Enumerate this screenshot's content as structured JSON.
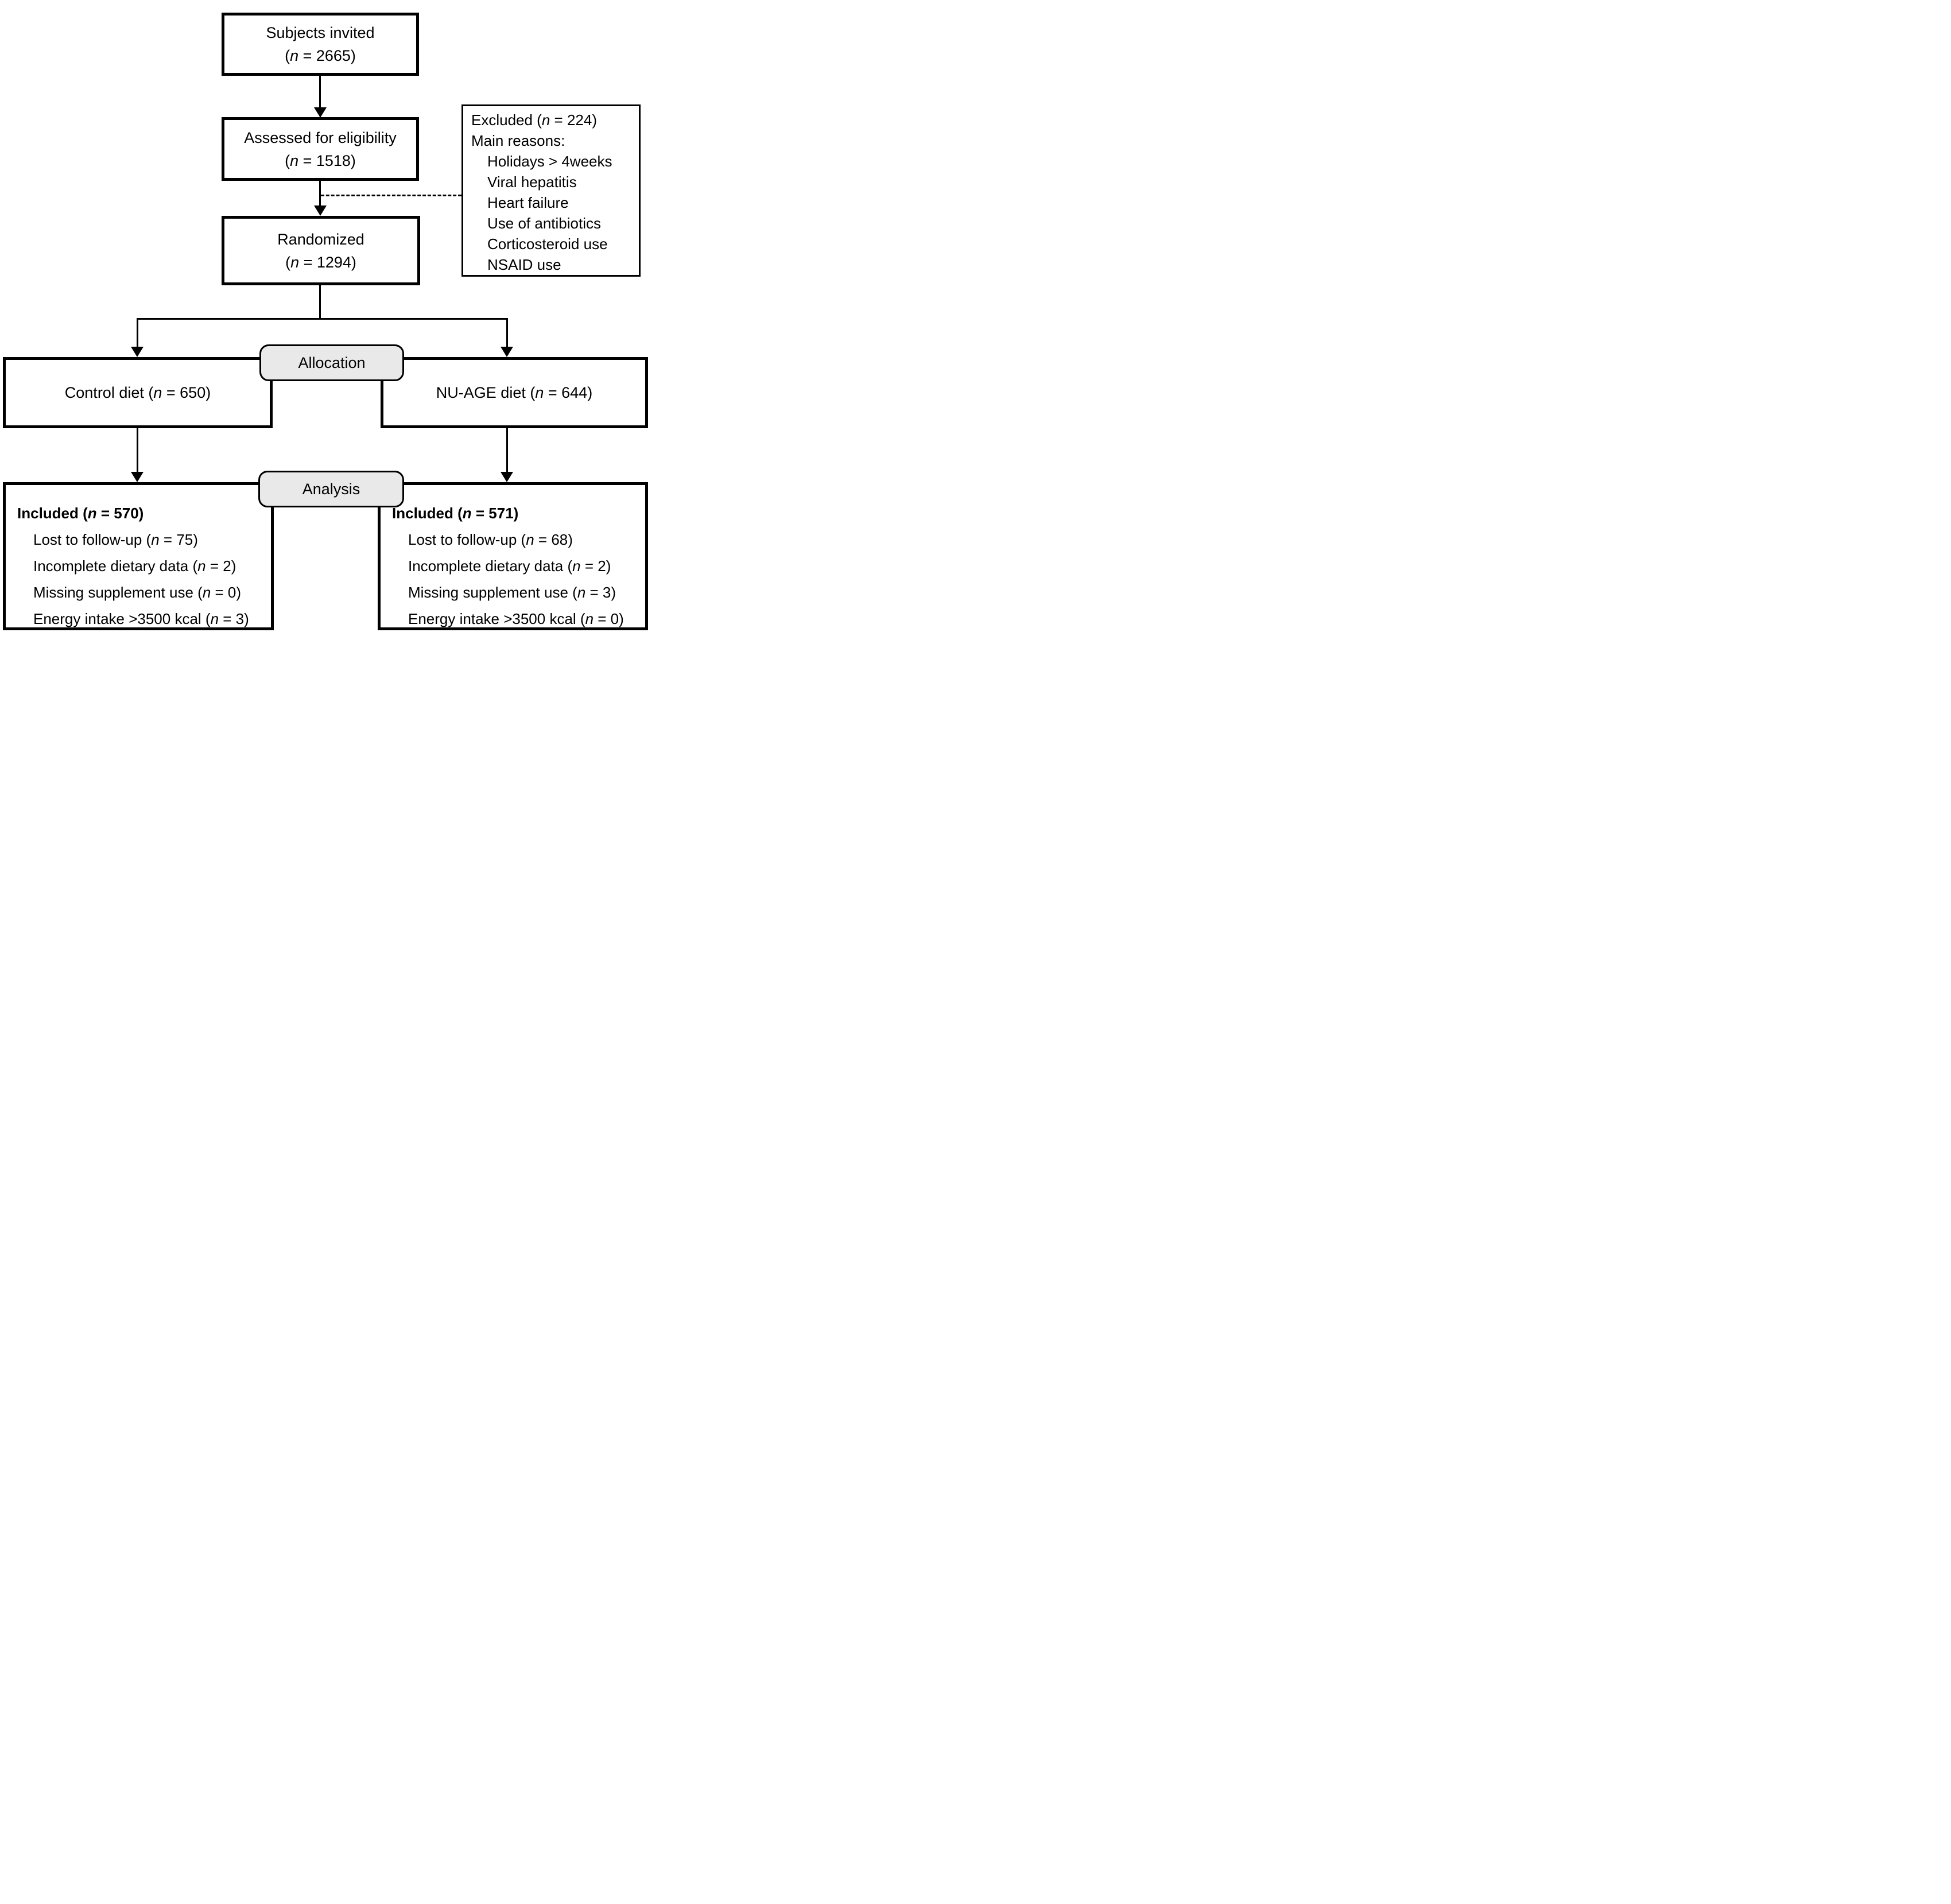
{
  "diagram": {
    "boxes": {
      "subjects_invited": {
        "title": "Subjects invited",
        "count": "(n = 2665)"
      },
      "assessed": {
        "title": "Assessed for eligibility",
        "count": "(n = 1518)"
      },
      "excluded": {
        "title": "Excluded (n = 224)",
        "subtitle": "Main reasons:",
        "reasons": [
          "Holidays > 4weeks",
          "Viral hepatitis",
          "Heart failure",
          "Use of antibiotics",
          "Corticosteroid use",
          "NSAID use"
        ]
      },
      "randomized": {
        "title": "Randomized",
        "count": "(n = 1294)"
      },
      "control_diet": {
        "label": "Control diet (n = 650)"
      },
      "nuage_diet": {
        "label": "NU-AGE diet (n = 644)"
      },
      "analysis_control": {
        "included": "Included (n = 570)",
        "items": [
          "Lost to follow-up (n = 75)",
          "Incomplete dietary data (n = 2)",
          "Missing supplement use (n = 0)",
          "Energy intake >3500 kcal (n = 3)"
        ]
      },
      "analysis_nuage": {
        "included": "Included (n = 571)",
        "items": [
          "Lost to follow-up (n = 68)",
          "Incomplete dietary data (n = 2)",
          "Missing supplement use (n = 3)",
          "Energy intake >3500 kcal (n = 0)"
        ]
      }
    },
    "stage_labels": {
      "allocation": "Allocation",
      "analysis": "Analysis"
    },
    "colors": {
      "stage_fill": "#e9e9e9",
      "line": "#000000",
      "background": "#ffffff"
    }
  }
}
